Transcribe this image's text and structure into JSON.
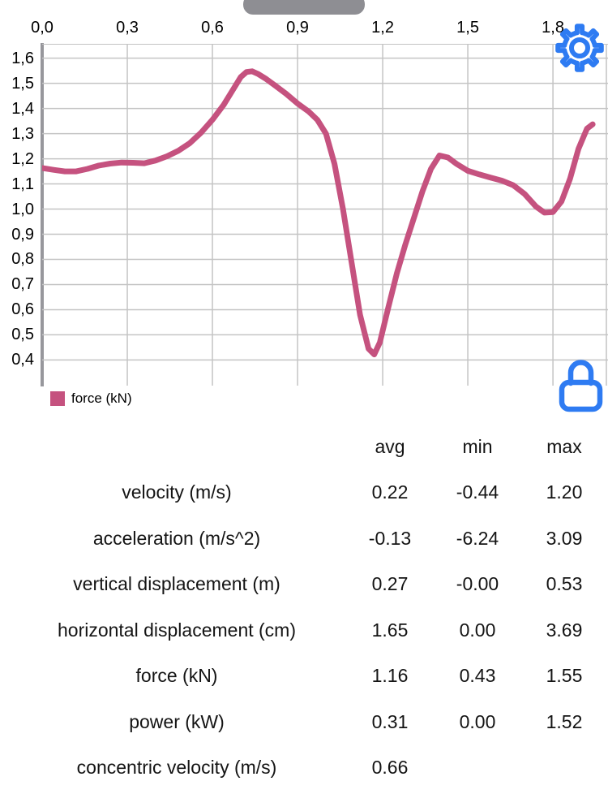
{
  "colors": {
    "accent_blue": "#2e7bf2",
    "line_pink": "#c5527f",
    "grid": "#c4c4c4",
    "axis": "#97979c",
    "handle_gray": "#8e8e93"
  },
  "chart_data": {
    "type": "line",
    "title": "",
    "xlabel": "",
    "ylabel": "",
    "grid": true,
    "legend_position": "bottom-left",
    "x_ticks": [
      "0,0",
      "0,3",
      "0,6",
      "0,9",
      "1,2",
      "1,5",
      "1,8"
    ],
    "y_ticks": [
      "1,6",
      "1,5",
      "1,4",
      "1,3",
      "1,2",
      "1,1",
      "1,0",
      "0,9",
      "0,8",
      "0,7",
      "0,6",
      "0,5",
      "0,4"
    ],
    "x_range": [
      0,
      1.994
    ],
    "y_range": [
      0.298,
      1.657
    ],
    "series": [
      {
        "name": "force (kN)",
        "color": "#c5527f",
        "points": [
          [
            0.0,
            1.163
          ],
          [
            0.04,
            1.156
          ],
          [
            0.08,
            1.15
          ],
          [
            0.12,
            1.15
          ],
          [
            0.16,
            1.16
          ],
          [
            0.2,
            1.173
          ],
          [
            0.24,
            1.181
          ],
          [
            0.28,
            1.185
          ],
          [
            0.32,
            1.184
          ],
          [
            0.36,
            1.182
          ],
          [
            0.4,
            1.193
          ],
          [
            0.44,
            1.21
          ],
          [
            0.48,
            1.232
          ],
          [
            0.52,
            1.262
          ],
          [
            0.56,
            1.304
          ],
          [
            0.6,
            1.355
          ],
          [
            0.64,
            1.415
          ],
          [
            0.67,
            1.47
          ],
          [
            0.7,
            1.525
          ],
          [
            0.72,
            1.545
          ],
          [
            0.74,
            1.548
          ],
          [
            0.76,
            1.538
          ],
          [
            0.79,
            1.517
          ],
          [
            0.82,
            1.492
          ],
          [
            0.86,
            1.458
          ],
          [
            0.9,
            1.42
          ],
          [
            0.94,
            1.387
          ],
          [
            0.97,
            1.355
          ],
          [
            1.0,
            1.3
          ],
          [
            1.03,
            1.18
          ],
          [
            1.06,
            1.0
          ],
          [
            1.09,
            0.79
          ],
          [
            1.12,
            0.58
          ],
          [
            1.15,
            0.445
          ],
          [
            1.17,
            0.422
          ],
          [
            1.19,
            0.47
          ],
          [
            1.22,
            0.61
          ],
          [
            1.25,
            0.745
          ],
          [
            1.28,
            0.86
          ],
          [
            1.31,
            0.965
          ],
          [
            1.34,
            1.07
          ],
          [
            1.37,
            1.16
          ],
          [
            1.4,
            1.213
          ],
          [
            1.43,
            1.205
          ],
          [
            1.46,
            1.18
          ],
          [
            1.5,
            1.152
          ],
          [
            1.54,
            1.138
          ],
          [
            1.58,
            1.125
          ],
          [
            1.62,
            1.113
          ],
          [
            1.66,
            1.095
          ],
          [
            1.7,
            1.06
          ],
          [
            1.74,
            1.01
          ],
          [
            1.77,
            0.986
          ],
          [
            1.8,
            0.988
          ],
          [
            1.83,
            1.03
          ],
          [
            1.86,
            1.12
          ],
          [
            1.89,
            1.24
          ],
          [
            1.92,
            1.32
          ],
          [
            1.94,
            1.337
          ]
        ]
      }
    ]
  },
  "icons": {
    "settings": "gear-icon",
    "lock": "lock-icon"
  },
  "table": {
    "headers": [
      "avg",
      "min",
      "max"
    ],
    "rows": [
      {
        "label": "velocity (m/s)",
        "avg": "0.22",
        "min": "-0.44",
        "max": "1.20"
      },
      {
        "label": "acceleration (m/s^2)",
        "avg": "-0.13",
        "min": "-6.24",
        "max": "3.09"
      },
      {
        "label": "vertical displacement (m)",
        "avg": "0.27",
        "min": "-0.00",
        "max": "0.53"
      },
      {
        "label": "horizontal displacement (cm)",
        "avg": "1.65",
        "min": "0.00",
        "max": "3.69"
      },
      {
        "label": "force (kN)",
        "avg": "1.16",
        "min": "0.43",
        "max": "1.55"
      },
      {
        "label": "power (kW)",
        "avg": "0.31",
        "min": "0.00",
        "max": "1.52"
      },
      {
        "label": "concentric velocity (m/s)",
        "avg": "0.66",
        "min": "",
        "max": ""
      }
    ]
  }
}
